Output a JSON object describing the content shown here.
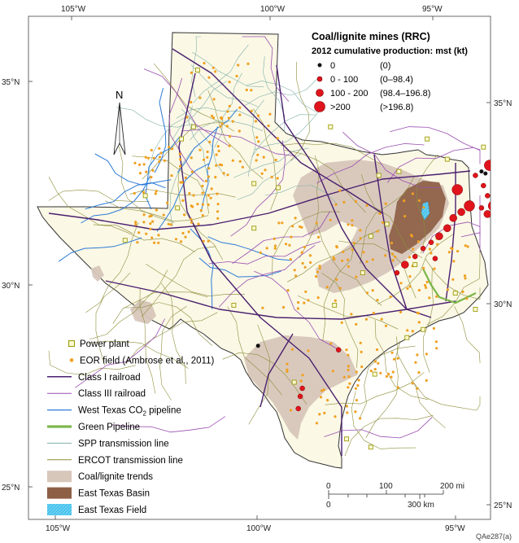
{
  "map": {
    "title": "Coal/lignite mines (RRC)",
    "subtitle": "2012 cumulative production: mst (kt)",
    "figure_id": "QAe287(a)",
    "north_label": "N",
    "colors": {
      "state_fill": "#fbf8e6",
      "outside_fill": "#ffffff",
      "coal_trend": "#d7c6ba",
      "east_texas_basin": "#8d5f45",
      "east_texas_field": "#45c2ee",
      "class1": "#4a1f6e",
      "class3": "#9a4fb0",
      "co2": "#2b7bd6",
      "green_pipeline": "#7ab648",
      "spp": "#7fb0a8",
      "ercot": "#8e8e3c",
      "eor": "#f0a020",
      "power_plant_border": "#9a9a10",
      "mine": "#e0141c"
    }
  },
  "mine_legend": [
    {
      "label": "0",
      "range": "(0)",
      "color": "#111111",
      "r": 2.5
    },
    {
      "label": "0 - 100",
      "range": "(0–98.4)",
      "color": "#e0141c",
      "r": 3
    },
    {
      "label": "100 - 200",
      "range": "(98.4–196.8)",
      "color": "#e0141c",
      "r": 4.5
    },
    {
      "label": ">200",
      "range": "(>196.8)",
      "color": "#e0141c",
      "r": 6.5
    }
  ],
  "legend": [
    {
      "label": "Power plant",
      "symbol": "power-plant"
    },
    {
      "label": "EOR field (Ambrose et al., 2011)",
      "symbol": "eor"
    },
    {
      "label": "Class I railroad",
      "symbol": "class1"
    },
    {
      "label": "Class III railroad",
      "symbol": "class3"
    },
    {
      "label": "West Texas CO",
      "sub": "2",
      "label_tail": " pipeline",
      "symbol": "co2"
    },
    {
      "label": "Green Pipeline",
      "symbol": "green"
    },
    {
      "label": "SPP transmission line",
      "symbol": "spp"
    },
    {
      "label": "ERCOT transmission line",
      "symbol": "ercot"
    },
    {
      "label": "Coal/lignite trends",
      "symbol": "coal"
    },
    {
      "label": "East Texas Basin",
      "symbol": "basin"
    },
    {
      "label": "East Texas Field",
      "symbol": "field"
    }
  ],
  "scalebar": {
    "mi_ticks": [
      "0",
      "100",
      "200 mi"
    ],
    "km_ticks": [
      "0",
      "300 km"
    ]
  },
  "axes": {
    "top_lon": [
      "105°W",
      "100°W",
      "95°W"
    ],
    "bottom_lon": [
      "105°W",
      "100°W",
      "95°W"
    ],
    "left_lat": [
      "35°N",
      "30°N",
      "25°N"
    ],
    "right_lat": [
      "35°N",
      "30°N",
      "25°N"
    ]
  },
  "mines": [
    {
      "lon": -95.35,
      "lat": 32.35,
      "size": 3
    },
    {
      "lon": -95.05,
      "lat": 31.95,
      "size": 3
    },
    {
      "lon": -95.25,
      "lat": 31.8,
      "size": 2
    },
    {
      "lon": -95.45,
      "lat": 31.65,
      "size": 2
    },
    {
      "lon": -95.6,
      "lat": 31.4,
      "size": 2
    },
    {
      "lon": -95.8,
      "lat": 31.2,
      "size": 2
    },
    {
      "lon": -96.0,
      "lat": 31.05,
      "size": 1
    },
    {
      "lon": -96.2,
      "lat": 30.9,
      "size": 1
    },
    {
      "lon": -96.4,
      "lat": 30.7,
      "size": 1
    },
    {
      "lon": -96.65,
      "lat": 30.5,
      "size": 2
    },
    {
      "lon": -96.85,
      "lat": 30.3,
      "size": 1
    },
    {
      "lon": -95.9,
      "lat": 30.65,
      "size": 1
    },
    {
      "lon": -94.9,
      "lat": 32.7,
      "size": 1
    },
    {
      "lon": -94.7,
      "lat": 32.45,
      "size": 1
    },
    {
      "lon": -94.6,
      "lat": 32.2,
      "size": 1
    },
    {
      "lon": -94.45,
      "lat": 31.95,
      "size": 3
    },
    {
      "lon": -94.6,
      "lat": 31.75,
      "size": 2
    },
    {
      "lon": -94.75,
      "lat": 31.9,
      "size": 1
    },
    {
      "lon": -94.55,
      "lat": 32.95,
      "size": 3
    },
    {
      "lon": -94.75,
      "lat": 32.8,
      "size": 0
    },
    {
      "lon": -94.65,
      "lat": 32.75,
      "size": 0
    },
    {
      "lon": -98.3,
      "lat": 28.4,
      "size": 1
    },
    {
      "lon": -99.2,
      "lat": 27.45,
      "size": 1
    },
    {
      "lon": -99.25,
      "lat": 27.25,
      "size": 1
    },
    {
      "lon": -99.3,
      "lat": 26.95,
      "size": 1
    },
    {
      "lon": -100.3,
      "lat": 28.5,
      "size": 0
    }
  ],
  "power_plants": [
    [
      -101.8,
      35.3
    ],
    [
      -102.2,
      33.6
    ],
    [
      -101.9,
      33.9
    ],
    [
      -100.4,
      32.5
    ],
    [
      -103.1,
      32.2
    ],
    [
      -102.3,
      31.9
    ],
    [
      -99.8,
      32.4
    ],
    [
      -97.3,
      32.7
    ],
    [
      -96.8,
      32.8
    ],
    [
      -97.5,
      31.2
    ],
    [
      -98.4,
      29.5
    ],
    [
      -97.7,
      30.3
    ],
    [
      -95.4,
      29.8
    ],
    [
      -96.2,
      28.9
    ],
    [
      -97.4,
      27.8
    ],
    [
      -94.9,
      29.4
    ],
    [
      -94.2,
      30.1
    ],
    [
      -95.6,
      33.1
    ],
    [
      -96.1,
      33.6
    ],
    [
      -98.5,
      33.9
    ],
    [
      -100.9,
      29.5
    ],
    [
      -97.1,
      31.5
    ],
    [
      -96.4,
      30.5
    ],
    [
      -94.7,
      33.4
    ],
    [
      -99.4,
      27.6
    ],
    [
      -100.4,
      31.4
    ],
    [
      -103.6,
      31.1
    ],
    [
      -98.1,
      26.2
    ],
    [
      -97.5,
      26.0
    ],
    [
      -96.6,
      28.7
    ]
  ],
  "eor_fields": []
}
